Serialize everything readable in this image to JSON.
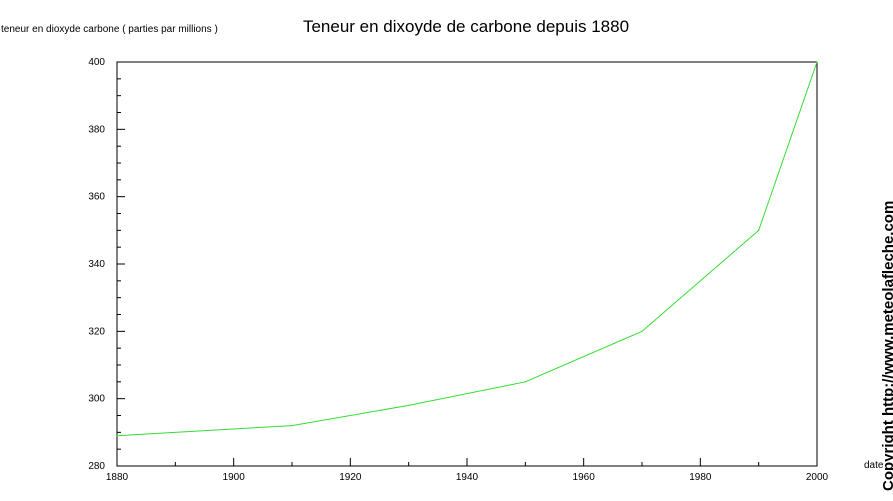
{
  "chart_data": {
    "type": "line",
    "title": "Teneur en dixoyde de carbone depuis 1880",
    "ylabel": "teneur en dioxyde carbone ( parties par millions )",
    "xlabel": "date",
    "xlim": [
      1880,
      2000
    ],
    "ylim": [
      280,
      400
    ],
    "x_ticks": [
      1880,
      1900,
      1920,
      1940,
      1960,
      1980,
      2000
    ],
    "y_ticks": [
      280,
      300,
      320,
      340,
      360,
      380,
      400
    ],
    "grid": false,
    "series": [
      {
        "color": "#33dd33",
        "x": [
          1880,
          1910,
          1930,
          1950,
          1970,
          1990,
          2000
        ],
        "y": [
          289,
          292,
          298,
          305,
          320,
          350,
          400
        ]
      }
    ]
  },
  "watermark": "Copyright http://www.meteolafleche.com"
}
